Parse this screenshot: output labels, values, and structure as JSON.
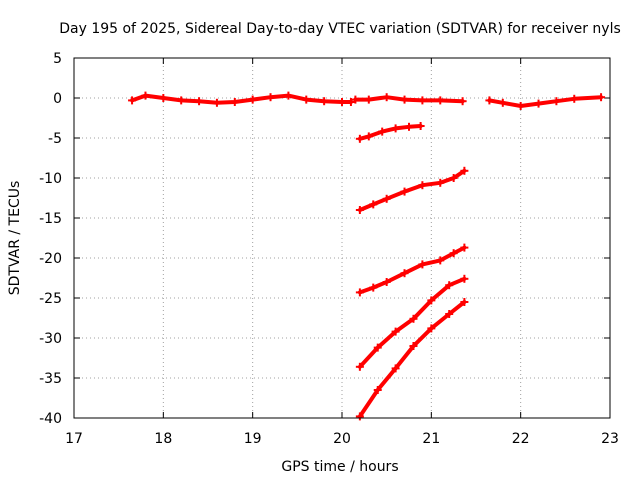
{
  "chart_data": {
    "type": "line",
    "title": "Day 195 of 2025, Sidereal Day-to-day VTEC variation (SDTVAR) for receiver nyls",
    "xlabel": "GPS time / hours",
    "ylabel": "SDTVAR / TECUs",
    "xlim": [
      17,
      23
    ],
    "ylim": [
      -40,
      5
    ],
    "xticks": [
      17,
      18,
      19,
      20,
      21,
      22,
      23
    ],
    "yticks": [
      5,
      0,
      -5,
      -10,
      -15,
      -20,
      -25,
      -30,
      -35,
      -40
    ],
    "grid": true,
    "legend": "none",
    "series_color": "#ff0000",
    "series": [
      {
        "x": [
          17.65,
          17.8,
          18.0,
          18.2,
          18.4,
          18.6,
          18.8,
          19.0,
          19.2,
          19.4,
          19.6,
          19.8,
          20.0,
          20.1
        ],
        "y": [
          -0.3,
          0.3,
          0.0,
          -0.3,
          -0.4,
          -0.6,
          -0.5,
          -0.2,
          0.1,
          0.3,
          -0.2,
          -0.4,
          -0.5,
          -0.5
        ]
      },
      {
        "x": [
          20.15,
          20.3,
          20.5,
          20.7,
          20.9,
          21.1,
          21.35
        ],
        "y": [
          -0.2,
          -0.2,
          0.1,
          -0.2,
          -0.3,
          -0.3,
          -0.4
        ]
      },
      {
        "x": [
          21.65,
          21.8,
          22.0,
          22.2,
          22.4,
          22.6,
          22.9
        ],
        "y": [
          -0.3,
          -0.6,
          -1.0,
          -0.7,
          -0.4,
          -0.1,
          0.1
        ]
      },
      {
        "x": [
          20.2,
          20.3,
          20.45,
          20.6,
          20.75,
          20.88
        ],
        "y": [
          -5.1,
          -4.8,
          -4.2,
          -3.8,
          -3.6,
          -3.5
        ]
      },
      {
        "x": [
          20.2,
          20.35,
          20.5,
          20.7,
          20.9,
          21.1,
          21.25,
          21.37
        ],
        "y": [
          -14.0,
          -13.3,
          -12.6,
          -11.7,
          -10.9,
          -10.6,
          -10.0,
          -9.1
        ]
      },
      {
        "x": [
          20.2,
          20.35,
          20.5,
          20.7,
          20.9,
          21.1,
          21.25,
          21.37
        ],
        "y": [
          -24.3,
          -23.7,
          -23.0,
          -21.9,
          -20.8,
          -20.3,
          -19.4,
          -18.7
        ]
      },
      {
        "x": [
          20.2,
          20.4,
          20.6,
          20.8,
          21.0,
          21.2,
          21.37
        ],
        "y": [
          -33.6,
          -31.2,
          -29.2,
          -27.6,
          -25.3,
          -23.4,
          -22.6
        ]
      },
      {
        "x": [
          20.2,
          20.4,
          20.6,
          20.8,
          21.0,
          21.2,
          21.37
        ],
        "y": [
          -39.8,
          -36.5,
          -33.8,
          -31.0,
          -28.8,
          -27.0,
          -25.5
        ]
      }
    ]
  }
}
